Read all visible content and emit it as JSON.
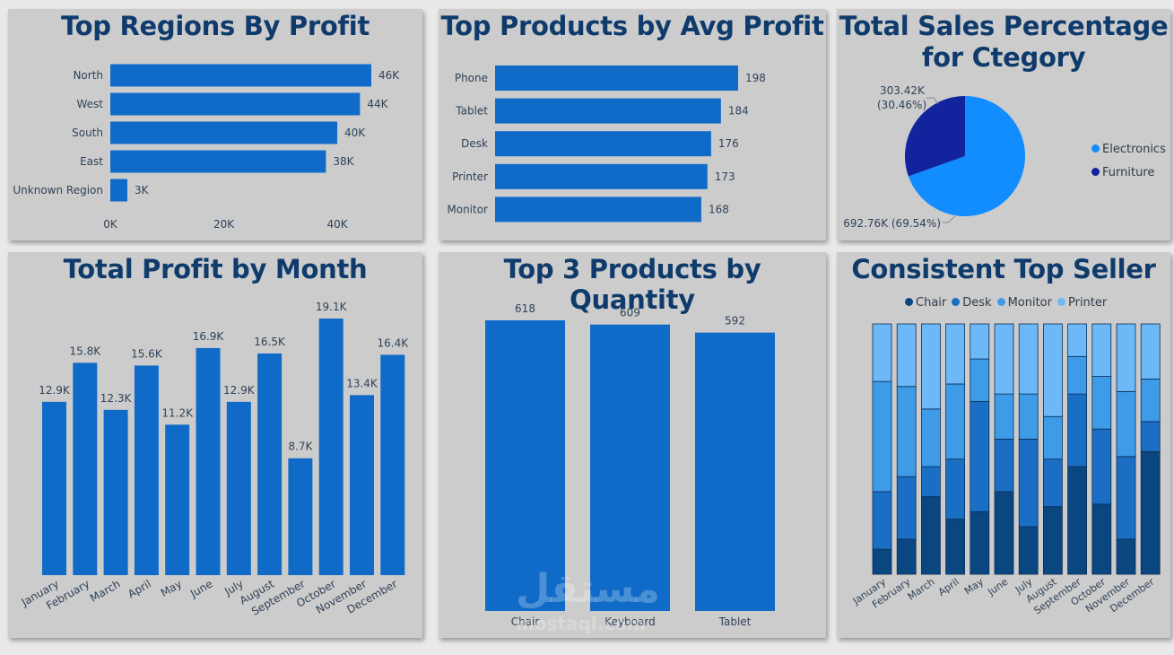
{
  "colors": {
    "bar": "#0f6bc7",
    "bar_dark": "#0d62b6",
    "axis_text": "#2f4258",
    "electronics": "#118dff",
    "furniture": "#12239e",
    "chair": "#0a4680",
    "desk": "#1a6fc4",
    "monitor": "#3e9be8",
    "printer": "#6db8f7"
  },
  "watermark": {
    "arabic": "مستقل",
    "latin": "mostaql.com"
  },
  "chart_data": [
    {
      "id": "regions",
      "type": "bar",
      "orientation": "horizontal",
      "title": "Top Regions By Profit",
      "categories": [
        "North",
        "West",
        "South",
        "East",
        "Unknown Region"
      ],
      "values": [
        46,
        44,
        40,
        38,
        3
      ],
      "value_labels": [
        "46K",
        "44K",
        "40K",
        "38K",
        "3K"
      ],
      "ticks": [
        "0K",
        "20K",
        "40K"
      ],
      "tick_values": [
        0,
        20,
        40
      ],
      "xlim": [
        0,
        46
      ]
    },
    {
      "id": "products_avg",
      "type": "bar",
      "orientation": "horizontal",
      "title": "Top Products by Avg Profit",
      "categories": [
        "Phone",
        "Tablet",
        "Desk",
        "Printer",
        "Monitor"
      ],
      "values": [
        198,
        184,
        176,
        173,
        168
      ],
      "value_labels": [
        "198",
        "184",
        "176",
        "173",
        "168"
      ],
      "xlim": [
        0,
        198
      ]
    },
    {
      "id": "sales_pct",
      "type": "pie",
      "title": "Total Sales Percentage",
      "title_line2": "for Ctegory",
      "slices": [
        {
          "name": "Electronics",
          "value": 692.76,
          "label": "692.76K (69.54%)"
        },
        {
          "name": "Furniture",
          "value": 303.42,
          "label_line1": "303.42K",
          "label_line2": "(30.46%)"
        }
      ],
      "legend": [
        "Electronics",
        "Furniture"
      ],
      "legend_position": "right"
    },
    {
      "id": "profit_month",
      "type": "bar",
      "orientation": "vertical",
      "title": "Total Profit by Month",
      "categories": [
        "January",
        "February",
        "March",
        "April",
        "May",
        "June",
        "July",
        "August",
        "September",
        "October",
        "November",
        "December"
      ],
      "values": [
        12.9,
        15.8,
        12.3,
        15.6,
        11.2,
        16.9,
        12.9,
        16.5,
        8.7,
        19.1,
        13.4,
        16.4
      ],
      "value_labels": [
        "12.9K",
        "15.8K",
        "12.3K",
        "15.6K",
        "11.2K",
        "16.9K",
        "12.9K",
        "16.5K",
        "8.7K",
        "19.1K",
        "13.4K",
        "16.4K"
      ],
      "ylim": [
        0,
        19.1
      ]
    },
    {
      "id": "top3_qty",
      "type": "bar",
      "orientation": "vertical",
      "title": "Top 3 Products by Quantity",
      "categories": [
        "Chair",
        "Keyboard",
        "Tablet"
      ],
      "values": [
        618,
        609,
        592
      ],
      "value_labels": [
        "618",
        "609",
        "592"
      ],
      "ylim": [
        0,
        618
      ]
    },
    {
      "id": "top_seller",
      "type": "bar",
      "stacked": "100%",
      "title": "Consistent Top Seller",
      "categories": [
        "January",
        "February",
        "March",
        "April",
        "May",
        "June",
        "July",
        "August",
        "September",
        "October",
        "November",
        "December"
      ],
      "legend_position": "top",
      "series": [
        {
          "name": "Chair",
          "values": [
            10,
            14,
            31,
            22,
            25,
            33,
            19,
            27,
            43,
            28,
            14,
            49
          ]
        },
        {
          "name": "Desk",
          "values": [
            23,
            25,
            12,
            24,
            44,
            21,
            35,
            19,
            29,
            30,
            33,
            12
          ]
        },
        {
          "name": "Monitor",
          "values": [
            44,
            36,
            23,
            30,
            17,
            18,
            18,
            17,
            15,
            21,
            26,
            17
          ]
        },
        {
          "name": "Printer",
          "values": [
            23,
            25,
            34,
            24,
            14,
            28,
            28,
            37,
            13,
            21,
            27,
            22
          ]
        }
      ],
      "ylim": [
        0,
        100
      ]
    }
  ]
}
